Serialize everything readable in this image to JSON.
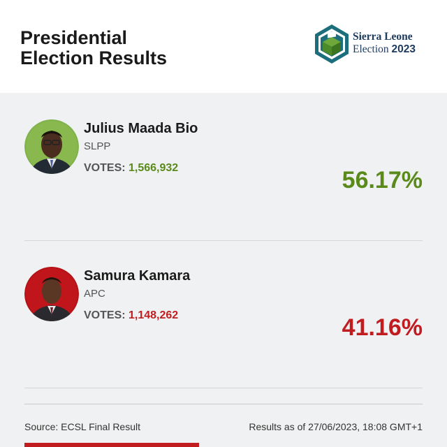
{
  "header": {
    "title_line1": "Presidential",
    "title_line2": "Election Results",
    "logo": {
      "line1": "Sierra Leone",
      "line2_word": "Election",
      "line2_year": "2023",
      "icon": "ballot-box-icon",
      "colors": {
        "hex": "#1d6e7d",
        "box": "#4d8a2a"
      }
    }
  },
  "candidates": [
    {
      "name": "Julius Maada Bio",
      "party": "SLPP",
      "votes_label": "VOTES:",
      "votes": "1,566,932",
      "percent": "56.17%",
      "color": "#5a8a1a"
    },
    {
      "name": "Samura Kamara",
      "party": "APC",
      "votes_label": "VOTES:",
      "votes": "1,148,262",
      "percent": "41.16%",
      "color": "#c11d21"
    }
  ],
  "footer": {
    "source": "Source: ECSL Final Result",
    "timestamp": "Results as of 27/06/2023, 18:08 GMT+1"
  }
}
